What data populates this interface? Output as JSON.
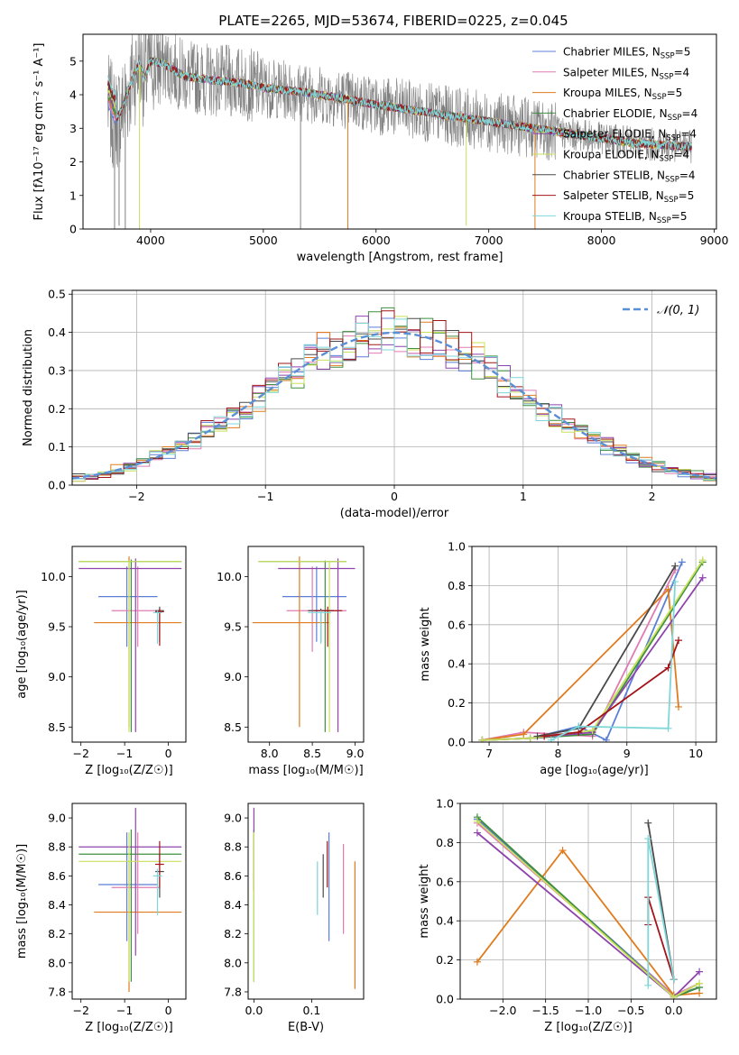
{
  "figure_title": "PLATE=2265, MJD=53674, FIBERID=0225, z=0.045",
  "colors": {
    "Chabrier MILES": "#5b7fd6",
    "Salpeter MILES": "#e07bb4",
    "Kroupa MILES": "#e07b1e",
    "Chabrier ELODIE": "#3f8f3f",
    "Salpeter ELODIE": "#8e44ad",
    "Kroupa ELODIE": "#c8e05a",
    "Chabrier STELIB": "#4a4a4a",
    "Salpeter STELIB": "#a3151a",
    "Kroupa STELIB": "#7fd6d8",
    "data": "#808080",
    "gauss": "#5b8fd6"
  },
  "chart_data": [
    {
      "id": "spectrum",
      "type": "line",
      "title": "PLATE=2265, MJD=53674, FIBERID=0225, z=0.045",
      "xlabel": "wavelength [Angstrom, rest frame]",
      "ylabel": "Flux [fλ10⁻¹⁷ erg cm⁻² s⁻¹ A⁻¹]",
      "xlim": [
        3400,
        9020
      ],
      "ylim": [
        0,
        5.8
      ],
      "xticks": [
        4000,
        5000,
        6000,
        7000,
        8000,
        9000
      ],
      "yticks": [
        0,
        1,
        2,
        3,
        4,
        5
      ],
      "grid": false,
      "legend_position": "upper-right",
      "legend": [
        {
          "name": "Chabrier MILES",
          "main": "Chabrier MILES, N",
          "sub": "SSP",
          "tail": "=5"
        },
        {
          "name": "Salpeter MILES",
          "main": "Salpeter MILES, N",
          "sub": "SSP",
          "tail": "=4"
        },
        {
          "name": "Kroupa MILES",
          "main": "Kroupa MILES, N",
          "sub": "SSP",
          "tail": "=5"
        },
        {
          "name": "Chabrier ELODIE",
          "main": "Chabrier ELODIE, N",
          "sub": "SSP",
          "tail": "=4"
        },
        {
          "name": "Salpeter ELODIE",
          "main": "Salpeter ELODIE, N",
          "sub": "SSP",
          "tail": "=4"
        },
        {
          "name": "Kroupa ELODIE",
          "main": "Kroupa ELODIE, N",
          "sub": "SSP",
          "tail": "=4"
        },
        {
          "name": "Chabrier STELIB",
          "main": "Chabrier STELIB, N",
          "sub": "SSP",
          "tail": "=4"
        },
        {
          "name": "Salpeter STELIB",
          "main": "Salpeter STELIB, N",
          "sub": "SSP",
          "tail": "=5"
        },
        {
          "name": "Kroupa STELIB",
          "main": "Kroupa STELIB, N",
          "sub": "SSP",
          "tail": "=5"
        }
      ],
      "continuum": {
        "x": [
          3620,
          3680,
          3750,
          3850,
          3900,
          3950,
          4000,
          4100,
          4300,
          4500,
          4800,
          5000,
          5300,
          5600,
          6000,
          6300,
          6600,
          7000,
          7300,
          7600,
          8000,
          8300,
          8800
        ],
        "y": [
          3.7,
          3.2,
          3.6,
          4.6,
          4.9,
          4.5,
          5.0,
          4.95,
          4.55,
          4.45,
          4.35,
          4.2,
          4.1,
          3.95,
          3.7,
          3.55,
          3.4,
          3.2,
          3.05,
          2.9,
          2.7,
          2.55,
          2.45
        ]
      },
      "data_range": [
        3620,
        8800
      ],
      "dips": [
        {
          "x": 3680,
          "y": 0.0,
          "series": "data"
        },
        {
          "x": 3720,
          "y": 0.1,
          "series": "data"
        },
        {
          "x": 3775,
          "y": 0.0,
          "series": "data"
        },
        {
          "x": 3900,
          "y": 0.0,
          "series": "Kroupa ELODIE"
        },
        {
          "x": 5330,
          "y": 0.0,
          "series": "data"
        },
        {
          "x": 5750,
          "y": 0.0,
          "series": "Kroupa MILES"
        },
        {
          "x": 6800,
          "y": 0.1,
          "series": "Kroupa ELODIE"
        },
        {
          "x": 7410,
          "y": 0.0,
          "series": "Kroupa MILES"
        }
      ]
    },
    {
      "id": "residuals",
      "type": "line",
      "xlabel": "(data-model)/error",
      "ylabel": "Normed distribution",
      "xlim": [
        -2.5,
        2.5
      ],
      "ylim": [
        0,
        0.51
      ],
      "xticks": [
        -2,
        -1,
        0,
        1,
        2
      ],
      "yticks": [
        0.0,
        0.1,
        0.2,
        0.3,
        0.4,
        0.5
      ],
      "grid": true,
      "legend_position": "upper-right",
      "gauss_label": "𝒩(0, 1)",
      "bin_width": 0.1
    },
    {
      "id": "age_vs_Z",
      "type": "scatter",
      "xlabel": "Z [log₁₀(Z/Z☉)]",
      "ylabel": "age  [log₁₀(age/yr)]",
      "xlim": [
        -2.2,
        0.4
      ],
      "ylim": [
        8.35,
        10.3
      ],
      "xticks": [
        -2,
        -1,
        0
      ],
      "yticks": [
        8.5,
        9.0,
        9.5,
        10.0
      ],
      "grid": false,
      "errorbars": [
        {
          "s": "Chabrier MILES",
          "x": -0.95,
          "xe": [
            -1.6,
            -0.25
          ],
          "y": 9.8,
          "ye": [
            9.3,
            10.1
          ]
        },
        {
          "s": "Salpeter MILES",
          "x": -0.7,
          "xe": [
            -1.3,
            -0.2
          ],
          "y": 9.66,
          "ye": [
            9.3,
            10.1
          ]
        },
        {
          "s": "Kroupa MILES",
          "x": -0.9,
          "xe": [
            -1.7,
            0.3
          ],
          "y": 9.54,
          "ye": [
            8.5,
            10.2
          ]
        },
        {
          "s": "Chabrier ELODIE",
          "x": -0.85,
          "xe": [
            -2.05,
            0.3
          ],
          "y": 10.15,
          "ye": [
            8.45,
            10.17
          ]
        },
        {
          "s": "Salpeter ELODIE",
          "x": -0.75,
          "xe": [
            -2.05,
            0.3
          ],
          "y": 10.08,
          "ye": [
            8.45,
            10.18
          ]
        },
        {
          "s": "Kroupa ELODIE",
          "x": -0.9,
          "xe": [
            -2.05,
            0.3
          ],
          "y": 10.15,
          "ye": [
            8.45,
            10.16
          ]
        },
        {
          "s": "Chabrier STELIB",
          "x": -0.2,
          "xe": [
            -0.3,
            -0.1
          ],
          "y": 9.66,
          "ye": [
            9.35,
            9.7
          ]
        },
        {
          "s": "Salpeter STELIB",
          "x": -0.2,
          "xe": [
            -0.3,
            -0.1
          ],
          "y": 9.65,
          "ye": [
            9.31,
            9.68
          ]
        },
        {
          "s": "Kroupa STELIB",
          "x": -0.25,
          "xe": [
            -0.35,
            -0.15
          ],
          "y": 9.64,
          "ye": [
            9.33,
            9.66
          ]
        }
      ]
    },
    {
      "id": "age_vs_mass",
      "type": "scatter",
      "xlabel": "mass [log₁₀(M/M☉)]",
      "ylabel": "",
      "xlim": [
        7.75,
        9.1
      ],
      "ylim": [
        8.35,
        10.3
      ],
      "xticks": [
        8.0,
        8.5,
        9.0
      ],
      "yticks": [
        8.5,
        9.0,
        9.5,
        10.0
      ],
      "grid": false,
      "errorbars": [
        {
          "s": "Chabrier MILES",
          "x": 8.55,
          "xe": [
            8.15,
            8.9
          ],
          "y": 9.8,
          "ye": [
            9.35,
            10.1
          ]
        },
        {
          "s": "Salpeter MILES",
          "x": 8.5,
          "xe": [
            8.2,
            8.9
          ],
          "y": 9.66,
          "ye": [
            9.25,
            10.1
          ]
        },
        {
          "s": "Kroupa MILES",
          "x": 8.35,
          "xe": [
            7.8,
            8.7
          ],
          "y": 9.54,
          "ye": [
            8.5,
            10.2
          ]
        },
        {
          "s": "Chabrier ELODIE",
          "x": 8.65,
          "xe": [
            7.87,
            8.9
          ],
          "y": 10.15,
          "ye": [
            8.45,
            10.16
          ]
        },
        {
          "s": "Salpeter ELODIE",
          "x": 8.8,
          "xe": [
            8.1,
            9.0
          ],
          "y": 10.08,
          "ye": [
            8.45,
            10.18
          ]
        },
        {
          "s": "Kroupa ELODIE",
          "x": 8.7,
          "xe": [
            7.87,
            8.9
          ],
          "y": 10.15,
          "ye": [
            8.45,
            10.15
          ]
        },
        {
          "s": "Chabrier STELIB",
          "x": 8.6,
          "xe": [
            8.45,
            8.75
          ],
          "y": 9.66,
          "ye": [
            9.35,
            9.68
          ]
        },
        {
          "s": "Salpeter STELIB",
          "x": 8.68,
          "xe": [
            8.52,
            8.85
          ],
          "y": 9.66,
          "ye": [
            9.3,
            9.7
          ]
        },
        {
          "s": "Kroupa STELIB",
          "x": 8.6,
          "xe": [
            8.45,
            8.72
          ],
          "y": 9.64,
          "ye": [
            9.33,
            9.66
          ]
        }
      ]
    },
    {
      "id": "weight_vs_age",
      "type": "line",
      "xlabel": "age  [log₁₀(age/yr)]",
      "ylabel": "mass weight",
      "xlim": [
        6.75,
        10.3
      ],
      "ylim": [
        0,
        1.0
      ],
      "xticks": [
        7,
        8,
        9,
        10
      ],
      "yticks": [
        0.0,
        0.2,
        0.4,
        0.6,
        0.8,
        1.0
      ],
      "grid": true,
      "series": [
        {
          "name": "Chabrier MILES",
          "x": [
            6.9,
            7.6,
            8.3,
            8.7,
            9.8
          ],
          "y": [
            0.01,
            0.02,
            0.08,
            0.01,
            0.92
          ]
        },
        {
          "name": "Salpeter MILES",
          "x": [
            6.9,
            7.5,
            8.5,
            9.7
          ],
          "y": [
            0.01,
            0.05,
            0.03,
            0.88
          ]
        },
        {
          "name": "Kroupa MILES",
          "x": [
            6.9,
            7.5,
            9.6,
            9.75
          ],
          "y": [
            0.01,
            0.04,
            0.78,
            0.18
          ]
        },
        {
          "name": "Chabrier ELODIE",
          "x": [
            6.9,
            7.6,
            8.5,
            10.1
          ],
          "y": [
            0.01,
            0.02,
            0.04,
            0.92
          ]
        },
        {
          "name": "Salpeter ELODIE",
          "x": [
            6.9,
            7.6,
            8.5,
            10.1
          ],
          "y": [
            0.01,
            0.02,
            0.05,
            0.84
          ]
        },
        {
          "name": "Kroupa ELODIE",
          "x": [
            6.9,
            7.6,
            8.5,
            10.1
          ],
          "y": [
            0.01,
            0.02,
            0.06,
            0.93
          ]
        },
        {
          "name": "Chabrier STELIB",
          "x": [
            7.7,
            8.3,
            9.7
          ],
          "y": [
            0.03,
            0.07,
            0.9
          ]
        },
        {
          "name": "Salpeter STELIB",
          "x": [
            7.8,
            8.3,
            9.6,
            9.75
          ],
          "y": [
            0.03,
            0.05,
            0.38,
            0.52
          ]
        },
        {
          "name": "Kroupa STELIB",
          "x": [
            7.9,
            8.3,
            9.6,
            9.7
          ],
          "y": [
            0.01,
            0.08,
            0.07,
            0.82
          ]
        }
      ]
    },
    {
      "id": "mass_vs_Z",
      "type": "scatter",
      "xlabel": "Z [log₁₀(Z/Z☉)]",
      "ylabel": "mass [log₁₀(M/M☉)]",
      "xlim": [
        -2.2,
        0.4
      ],
      "ylim": [
        7.75,
        9.1
      ],
      "xticks": [
        -2,
        -1,
        0
      ],
      "yticks": [
        7.8,
        8.0,
        8.2,
        8.4,
        8.6,
        8.8,
        9.0
      ],
      "grid": false,
      "errorbars": [
        {
          "s": "Chabrier MILES",
          "x": -0.95,
          "xe": [
            -1.6,
            -0.25
          ],
          "y": 8.54,
          "ye": [
            8.15,
            8.9
          ]
        },
        {
          "s": "Salpeter MILES",
          "x": -0.7,
          "xe": [
            -1.3,
            -0.2
          ],
          "y": 8.52,
          "ye": [
            8.2,
            8.9
          ]
        },
        {
          "s": "Kroupa MILES",
          "x": -0.9,
          "xe": [
            -1.7,
            0.3
          ],
          "y": 8.35,
          "ye": [
            7.8,
            8.7
          ]
        },
        {
          "s": "Chabrier ELODIE",
          "x": -0.85,
          "xe": [
            -2.05,
            0.3
          ],
          "y": 8.75,
          "ye": [
            7.87,
            8.92
          ]
        },
        {
          "s": "Salpeter ELODIE",
          "x": -0.75,
          "xe": [
            -2.05,
            0.3
          ],
          "y": 8.8,
          "ye": [
            8.05,
            9.07
          ]
        },
        {
          "s": "Kroupa ELODIE",
          "x": -0.9,
          "xe": [
            -2.05,
            0.3
          ],
          "y": 8.7,
          "ye": [
            7.87,
            8.9
          ]
        },
        {
          "s": "Chabrier STELIB",
          "x": -0.2,
          "xe": [
            -0.3,
            -0.1
          ],
          "y": 8.63,
          "ye": [
            8.45,
            8.75
          ]
        },
        {
          "s": "Salpeter STELIB",
          "x": -0.2,
          "xe": [
            -0.3,
            -0.1
          ],
          "y": 8.68,
          "ye": [
            8.52,
            8.84
          ]
        },
        {
          "s": "Kroupa STELIB",
          "x": -0.25,
          "xe": [
            -0.35,
            -0.15
          ],
          "y": 8.6,
          "ye": [
            8.33,
            8.65
          ]
        }
      ]
    },
    {
      "id": "mass_vs_ebv",
      "type": "scatter",
      "xlabel": "E(B-V)",
      "ylabel": "",
      "xlim": [
        -0.01,
        0.19
      ],
      "ylim": [
        7.75,
        9.1
      ],
      "xticks": [
        0.0,
        0.1
      ],
      "yticks": [
        7.8,
        8.0,
        8.2,
        8.4,
        8.6,
        8.8,
        9.0
      ],
      "grid": false,
      "errorbars": [
        {
          "s": "Chabrier MILES",
          "x": 0.13,
          "y": 8.54,
          "ye": [
            8.15,
            8.9
          ]
        },
        {
          "s": "Salpeter MILES",
          "x": 0.155,
          "y": 8.52,
          "ye": [
            8.2,
            8.82
          ]
        },
        {
          "s": "Kroupa MILES",
          "x": 0.175,
          "y": 8.35,
          "ye": [
            7.82,
            8.7
          ]
        },
        {
          "s": "Chabrier ELODIE",
          "x": 0.0,
          "y": 8.75,
          "ye": [
            7.87,
            8.92
          ]
        },
        {
          "s": "Salpeter ELODIE",
          "x": 0.0,
          "y": 8.8,
          "ye": [
            8.5,
            9.07
          ]
        },
        {
          "s": "Kroupa ELODIE",
          "x": 0.0,
          "y": 8.7,
          "ye": [
            7.87,
            8.9
          ]
        },
        {
          "s": "Chabrier STELIB",
          "x": 0.12,
          "y": 8.63,
          "ye": [
            8.45,
            8.75
          ]
        },
        {
          "s": "Salpeter STELIB",
          "x": 0.127,
          "y": 8.68,
          "ye": [
            8.52,
            8.84
          ]
        },
        {
          "s": "Kroupa STELIB",
          "x": 0.11,
          "y": 8.6,
          "ye": [
            8.33,
            8.7
          ]
        }
      ]
    },
    {
      "id": "weight_vs_Z",
      "type": "line",
      "xlabel": "Z [log₁₀(Z/Z☉)]",
      "ylabel": "mass weight",
      "xlim": [
        -2.5,
        0.5
      ],
      "ylim": [
        0,
        1.0
      ],
      "xticks": [
        -2.0,
        -1.5,
        -1.0,
        -0.5,
        0.0
      ],
      "yticks": [
        0.0,
        0.2,
        0.4,
        0.6,
        0.8,
        1.0
      ],
      "grid": true,
      "series": [
        {
          "name": "Chabrier MILES",
          "x": [
            -2.3,
            0.0,
            0.3
          ],
          "y": [
            0.92,
            0.02,
            0.06
          ]
        },
        {
          "name": "Salpeter MILES",
          "x": [
            -2.3,
            0.0,
            0.3
          ],
          "y": [
            0.9,
            0.02,
            0.08
          ]
        },
        {
          "name": "Kroupa MILES",
          "x": [
            -2.3,
            -1.3,
            0.0,
            0.3
          ],
          "y": [
            0.19,
            0.76,
            0.02,
            0.03
          ]
        },
        {
          "name": "Chabrier ELODIE",
          "x": [
            -2.3,
            0.0,
            0.3
          ],
          "y": [
            0.93,
            0.01,
            0.06
          ]
        },
        {
          "name": "Salpeter ELODIE",
          "x": [
            -2.3,
            0.0,
            0.3
          ],
          "y": [
            0.85,
            0.01,
            0.14
          ]
        },
        {
          "name": "Kroupa ELODIE",
          "x": [
            -2.3,
            0.0,
            0.3
          ],
          "y": [
            0.91,
            0.01,
            0.08
          ]
        },
        {
          "name": "Chabrier STELIB",
          "x": [
            -0.3,
            0.0
          ],
          "y": [
            0.9,
            0.1
          ]
        },
        {
          "name": "Salpeter STELIB",
          "x": [
            -0.3,
            -0.3,
            0.0
          ],
          "y": [
            0.38,
            0.52,
            0.1
          ]
        },
        {
          "name": "Kroupa STELIB",
          "x": [
            -0.3,
            -0.3,
            0.0
          ],
          "y": [
            0.07,
            0.82,
            0.1
          ]
        }
      ]
    }
  ]
}
